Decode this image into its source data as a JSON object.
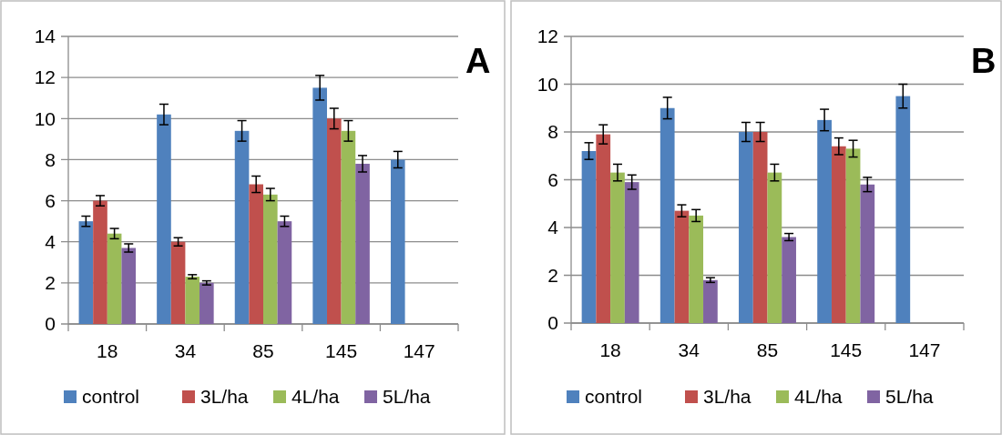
{
  "chart_data": [
    {
      "type": "bar",
      "categories": [
        "18",
        "34",
        "85",
        "145",
        "147"
      ],
      "ylim": [
        0,
        14
      ],
      "yticks": [
        0,
        2,
        4,
        6,
        8,
        10,
        12,
        14
      ],
      "grid": "y",
      "legend": "bottom",
      "annotations": [
        "A"
      ],
      "series": [
        {
          "name": "control",
          "color": "#4f81bd",
          "values": [
            5.0,
            10.2,
            9.4,
            11.5,
            8.0
          ],
          "errors": [
            0.25,
            0.5,
            0.5,
            0.6,
            0.4
          ]
        },
        {
          "name": "3L/ha",
          "color": "#c0504d",
          "values": [
            6.0,
            4.0,
            6.8,
            10.0,
            null
          ],
          "errors": [
            0.25,
            0.2,
            0.4,
            0.5,
            null
          ]
        },
        {
          "name": "4L/ha",
          "color": "#9bbb59",
          "values": [
            4.4,
            2.3,
            6.3,
            9.4,
            null
          ],
          "errors": [
            0.25,
            0.1,
            0.3,
            0.5,
            null
          ]
        },
        {
          "name": "5L/ha",
          "color": "#8064a2",
          "values": [
            3.7,
            2.0,
            5.0,
            7.8,
            null
          ],
          "errors": [
            0.2,
            0.1,
            0.25,
            0.4,
            null
          ]
        }
      ]
    },
    {
      "type": "bar",
      "categories": [
        "18",
        "34",
        "85",
        "145",
        "147"
      ],
      "ylim": [
        0,
        12
      ],
      "yticks": [
        0,
        2,
        4,
        6,
        8,
        10,
        12
      ],
      "grid": "y",
      "legend": "bottom",
      "annotations": [
        "B"
      ],
      "series": [
        {
          "name": "control",
          "color": "#4f81bd",
          "values": [
            7.2,
            9.0,
            8.0,
            8.5,
            9.5
          ],
          "errors": [
            0.35,
            0.45,
            0.4,
            0.45,
            0.5
          ]
        },
        {
          "name": "3L/ha",
          "color": "#c0504d",
          "values": [
            7.9,
            4.7,
            8.0,
            7.4,
            null
          ],
          "errors": [
            0.4,
            0.25,
            0.4,
            0.35,
            null
          ]
        },
        {
          "name": "4L/ha",
          "color": "#9bbb59",
          "values": [
            6.3,
            4.5,
            6.3,
            7.3,
            null
          ],
          "errors": [
            0.35,
            0.25,
            0.35,
            0.35,
            null
          ]
        },
        {
          "name": "5L/ha",
          "color": "#8064a2",
          "values": [
            5.9,
            1.8,
            3.6,
            5.8,
            null
          ],
          "errors": [
            0.3,
            0.1,
            0.15,
            0.3,
            null
          ]
        }
      ]
    }
  ]
}
